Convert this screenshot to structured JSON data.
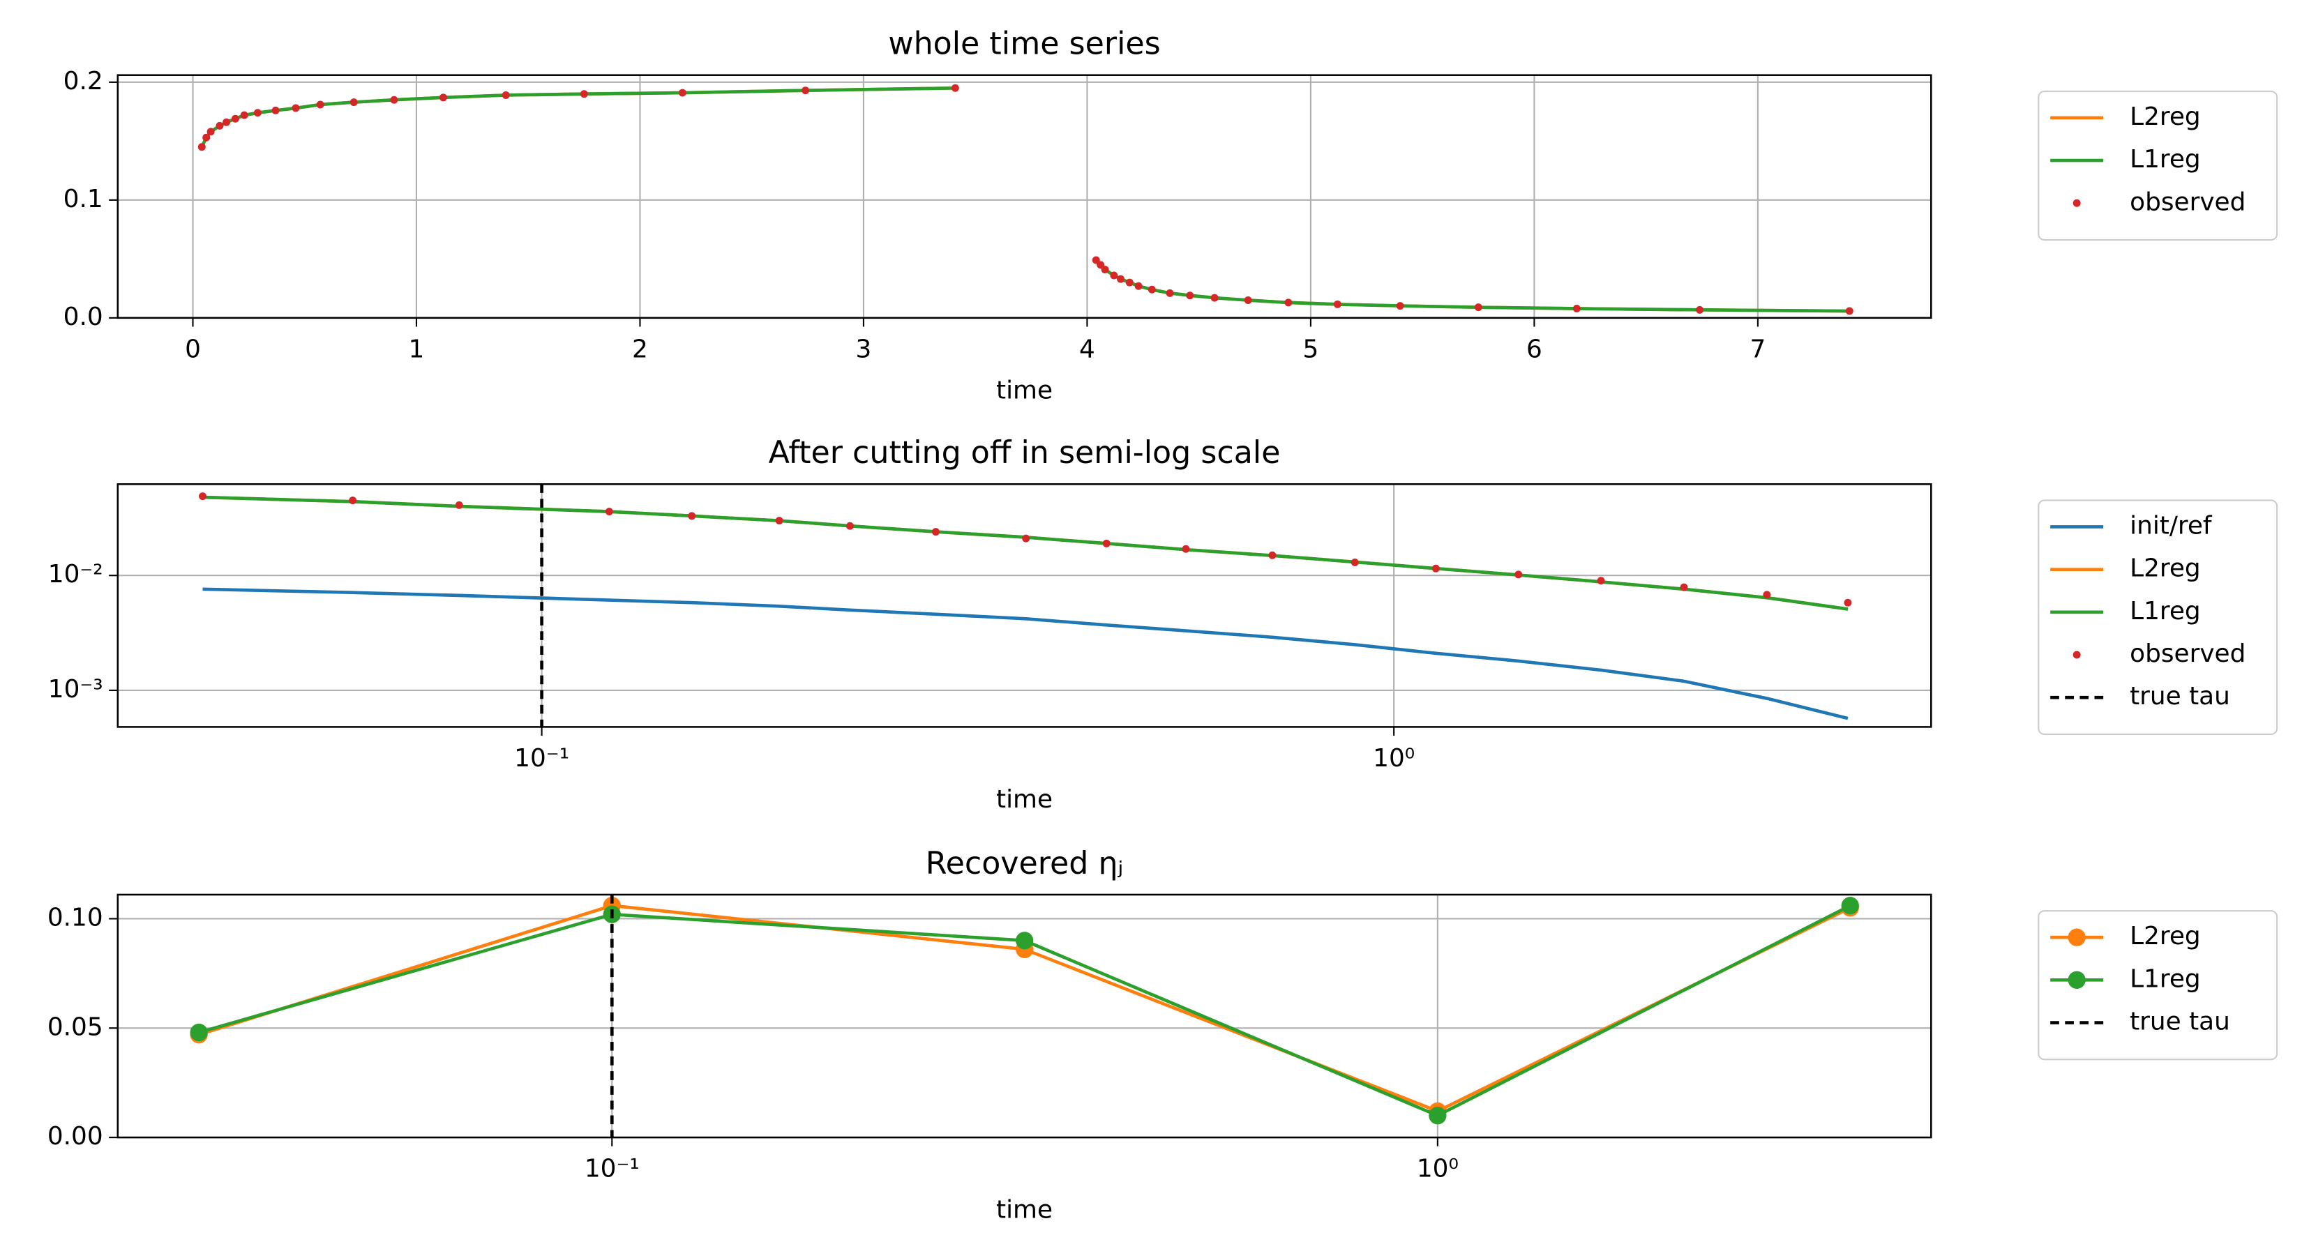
{
  "chart_data": [
    {
      "type": "line",
      "title": "whole time series",
      "xlabel": "time",
      "x": [
        0.04,
        0.06,
        0.08,
        0.12,
        0.15,
        0.19,
        0.23,
        0.29,
        0.37,
        0.46,
        0.57,
        0.72,
        0.9,
        1.12,
        1.4,
        1.75,
        2.19,
        2.74,
        3.41,
        null,
        4.04,
        4.06,
        4.08,
        4.12,
        4.15,
        4.19,
        4.23,
        4.29,
        4.37,
        4.46,
        4.57,
        4.72,
        4.9,
        5.12,
        5.4,
        5.75,
        6.19,
        6.74,
        7.41
      ],
      "series": [
        {
          "name": "L2reg",
          "color": "#ff7f0e",
          "values": [
            0.145,
            0.153,
            0.158,
            0.163,
            0.166,
            0.169,
            0.172,
            0.174,
            0.176,
            0.178,
            0.181,
            0.183,
            0.185,
            0.187,
            0.189,
            0.19,
            0.191,
            0.193,
            0.195,
            null,
            0.049,
            0.045,
            0.041,
            0.036,
            0.033,
            0.03,
            0.027,
            0.024,
            0.021,
            0.019,
            0.017,
            0.015,
            0.013,
            0.0115,
            0.0102,
            0.009,
            0.0079,
            0.0068,
            0.0058
          ]
        },
        {
          "name": "L1reg",
          "color": "#2ca02c",
          "values": [
            0.145,
            0.153,
            0.158,
            0.163,
            0.166,
            0.169,
            0.172,
            0.174,
            0.176,
            0.178,
            0.181,
            0.183,
            0.185,
            0.187,
            0.189,
            0.19,
            0.191,
            0.193,
            0.195,
            null,
            0.049,
            0.045,
            0.041,
            0.036,
            0.033,
            0.03,
            0.027,
            0.024,
            0.021,
            0.019,
            0.017,
            0.015,
            0.013,
            0.0115,
            0.0102,
            0.009,
            0.0079,
            0.0068,
            0.0058
          ]
        },
        {
          "name": "observed",
          "color": "#d62728",
          "style": "markers",
          "values": [
            0.145,
            0.153,
            0.158,
            0.163,
            0.166,
            0.169,
            0.172,
            0.174,
            0.176,
            0.178,
            0.181,
            0.183,
            0.185,
            0.187,
            0.189,
            0.19,
            0.191,
            0.193,
            0.195,
            null,
            0.049,
            0.045,
            0.041,
            0.036,
            0.033,
            0.03,
            0.027,
            0.024,
            0.021,
            0.019,
            0.017,
            0.015,
            0.013,
            0.0115,
            0.0102,
            0.009,
            0.0079,
            0.0068,
            0.0058
          ]
        }
      ],
      "xlim": [
        -0.336,
        7.775
      ],
      "ylim": [
        0,
        0.206
      ],
      "xticks": [
        0,
        1,
        2,
        3,
        4,
        5,
        6,
        7
      ],
      "yticks": [
        {
          "value": 0,
          "label": "0.0"
        },
        {
          "value": 0.1,
          "label": "0.1"
        },
        {
          "value": 0.2,
          "label": "0.2"
        }
      ],
      "grid": true,
      "legend": "outside right"
    },
    {
      "type": "line",
      "title": "After cutting off in semi-log scale",
      "xlabel": "time",
      "xscale": "log",
      "yscale": "log",
      "x": [
        0.04,
        0.06,
        0.08,
        0.12,
        0.15,
        0.19,
        0.23,
        0.29,
        0.37,
        0.46,
        0.57,
        0.72,
        0.9,
        1.12,
        1.4,
        1.75,
        2.19,
        2.74,
        3.41
      ],
      "series": [
        {
          "name": "init/ref",
          "color": "#1f77b4",
          "values": [
            0.0076,
            0.0071,
            0.0067,
            0.0061,
            0.0058,
            0.0054,
            0.005,
            0.0046,
            0.0042,
            0.0037,
            0.0033,
            0.0029,
            0.0025,
            0.0021,
            0.0018,
            0.0015,
            0.0012,
            0.00085,
            0.00057
          ]
        },
        {
          "name": "L2reg",
          "color": "#ff7f0e",
          "values": [
            0.048,
            0.044,
            0.04,
            0.036,
            0.033,
            0.03,
            0.027,
            0.024,
            0.0215,
            0.019,
            0.0168,
            0.0149,
            0.0131,
            0.0115,
            0.0101,
            0.0088,
            0.0076,
            0.0064,
            0.0051
          ]
        },
        {
          "name": "L1reg",
          "color": "#2ca02c",
          "values": [
            0.048,
            0.044,
            0.04,
            0.036,
            0.033,
            0.03,
            0.027,
            0.024,
            0.0215,
            0.019,
            0.0168,
            0.0149,
            0.0131,
            0.0115,
            0.0101,
            0.0088,
            0.0076,
            0.0064,
            0.0051
          ]
        },
        {
          "name": "observed",
          "color": "#d62728",
          "style": "markers",
          "values": [
            0.049,
            0.045,
            0.041,
            0.036,
            0.033,
            0.03,
            0.027,
            0.024,
            0.021,
            0.019,
            0.017,
            0.015,
            0.013,
            0.0115,
            0.0102,
            0.009,
            0.0079,
            0.0068,
            0.0058
          ]
        }
      ],
      "vlines": [
        {
          "name": "true tau",
          "x": 0.1,
          "color": "#000000"
        }
      ],
      "xlim": [
        0.0318,
        4.27
      ],
      "ylim": [
        0.00048,
        0.0624
      ],
      "xticks": [
        {
          "value": 0.1,
          "label": "10⁻¹"
        },
        {
          "value": 1,
          "label": "10⁰"
        }
      ],
      "yticks": [
        {
          "value": 0.001,
          "label": "10⁻³"
        },
        {
          "value": 0.01,
          "label": "10⁻²"
        }
      ],
      "grid": true,
      "legend": "outside right"
    },
    {
      "type": "line",
      "title": "Recovered ηⱼ",
      "xlabel": "time",
      "xscale": "log",
      "x": [
        0.0316,
        0.1,
        0.316,
        1,
        3.16
      ],
      "series": [
        {
          "name": "L2reg",
          "color": "#ff7f0e",
          "marker": true,
          "values": [
            0.047,
            0.106,
            0.086,
            0.012,
            0.105
          ]
        },
        {
          "name": "L1reg",
          "color": "#2ca02c",
          "marker": true,
          "values": [
            0.048,
            0.102,
            0.09,
            0.01,
            0.106
          ]
        }
      ],
      "vlines": [
        {
          "name": "true tau",
          "x": 0.1,
          "color": "#000000"
        }
      ],
      "xlim": [
        0.0252,
        3.96
      ],
      "ylim": [
        0,
        0.111
      ],
      "xticks": [
        {
          "value": 0.1,
          "label": "10⁻¹"
        },
        {
          "value": 1,
          "label": "10⁰"
        }
      ],
      "yticks": [
        {
          "value": 0,
          "label": "0.00"
        },
        {
          "value": 0.05,
          "label": "0.05"
        },
        {
          "value": 0.1,
          "label": "0.10"
        }
      ],
      "grid": true,
      "legend": "outside right"
    }
  ]
}
